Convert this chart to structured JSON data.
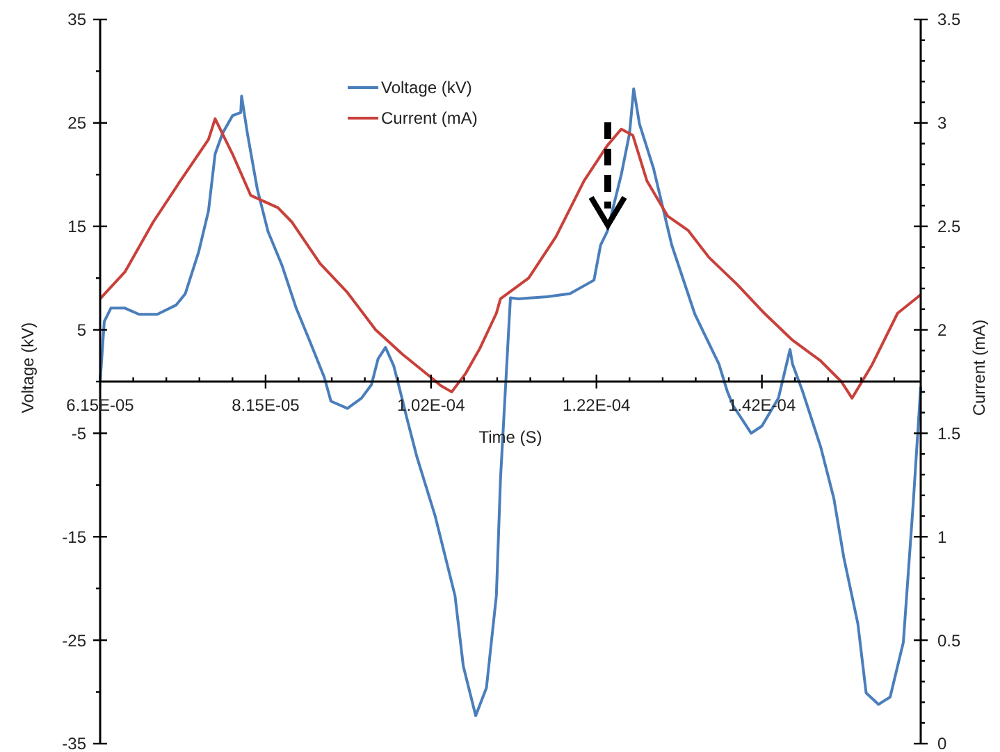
{
  "chart_data": {
    "type": "line",
    "xlabel": "Time  (S)",
    "ylabel": "Voltage  (kV)",
    "y2label": "Current  (mA)",
    "xlim": [
      6.15e-05,
      0.0001607
    ],
    "ylim": [
      -35,
      35
    ],
    "y2lim": [
      0,
      3.5
    ],
    "xticks": [
      {
        "value": 6.15e-05,
        "label": "6.15E-05"
      },
      {
        "value": 6.55e-05,
        "label": null
      },
      {
        "value": 6.95e-05,
        "label": null
      },
      {
        "value": 7.35e-05,
        "label": null
      },
      {
        "value": 7.75e-05,
        "label": null
      },
      {
        "value": 8.15e-05,
        "label": "8.15E-05"
      },
      {
        "value": 8.55e-05,
        "label": null
      },
      {
        "value": 8.95e-05,
        "label": null
      },
      {
        "value": 9.35e-05,
        "label": null
      },
      {
        "value": 9.75e-05,
        "label": null
      },
      {
        "value": 0.0001015,
        "label": "1.02E-04"
      },
      {
        "value": 0.0001055,
        "label": null
      },
      {
        "value": 0.0001095,
        "label": null
      },
      {
        "value": 0.0001135,
        "label": null
      },
      {
        "value": 0.0001175,
        "label": null
      },
      {
        "value": 0.0001215,
        "label": "1.22E-04"
      },
      {
        "value": 0.0001255,
        "label": null
      },
      {
        "value": 0.0001295,
        "label": null
      },
      {
        "value": 0.0001335,
        "label": null
      },
      {
        "value": 0.0001375,
        "label": null
      },
      {
        "value": 0.0001415,
        "label": "1.42E-04"
      },
      {
        "value": 0.0001455,
        "label": null
      },
      {
        "value": 0.0001495,
        "label": null
      },
      {
        "value": 0.0001535,
        "label": null
      },
      {
        "value": 0.0001575,
        "label": null
      }
    ],
    "yticks": [
      -35,
      {
        "value": -30,
        "label": null
      },
      -25,
      {
        "value": -20,
        "label": null
      },
      -15,
      {
        "value": -10,
        "label": null
      },
      -5,
      {
        "value": 0,
        "label": null
      },
      5,
      {
        "value": 10,
        "label": null
      },
      15,
      {
        "value": 20,
        "label": null
      },
      25,
      {
        "value": 30,
        "label": null
      },
      35
    ],
    "y2ticks": [
      0,
      {
        "value": 0.1,
        "label": null
      },
      {
        "value": 0.2,
        "label": null
      },
      {
        "value": 0.3,
        "label": null
      },
      {
        "value": 0.4,
        "label": null
      },
      0.5,
      {
        "value": 0.6,
        "label": null
      },
      {
        "value": 0.7,
        "label": null
      },
      {
        "value": 0.8,
        "label": null
      },
      {
        "value": 0.9,
        "label": null
      },
      1,
      {
        "value": 1.1,
        "label": null
      },
      {
        "value": 1.2,
        "label": null
      },
      {
        "value": 1.3,
        "label": null
      },
      {
        "value": 1.4,
        "label": null
      },
      1.5,
      {
        "value": 1.6,
        "label": null
      },
      {
        "value": 1.7,
        "label": null
      },
      {
        "value": 1.8,
        "label": null
      },
      {
        "value": 1.9,
        "label": null
      },
      2,
      {
        "value": 2.1,
        "label": null
      },
      {
        "value": 2.2,
        "label": null
      },
      {
        "value": 2.3,
        "label": null
      },
      {
        "value": 2.4,
        "label": null
      },
      2.5,
      {
        "value": 2.6,
        "label": null
      },
      {
        "value": 2.7,
        "label": null
      },
      {
        "value": 2.8,
        "label": null
      },
      {
        "value": 2.9,
        "label": null
      },
      3,
      {
        "value": 3.1,
        "label": null
      },
      {
        "value": 3.2,
        "label": null
      },
      {
        "value": 3.3,
        "label": null
      },
      {
        "value": 3.4,
        "label": null
      },
      3.5
    ],
    "grid": false,
    "legend": "top",
    "marker": "none",
    "line_style": "solid",
    "series": [
      {
        "name": "Voltage (kV)",
        "color": "#4a7ebb",
        "x": [
          6.15e-05,
          6.2e-05,
          6.28e-05,
          6.45e-05,
          6.62e-05,
          6.84e-05,
          7.07e-05,
          7.18e-05,
          7.34e-05,
          7.46e-05,
          7.54e-05,
          7.63e-05,
          7.75e-05,
          7.85e-05,
          7.86e-05,
          7.93e-05,
          8.05e-05,
          8.18e-05,
          8.35e-05,
          8.52e-05,
          8.69e-05,
          8.86e-05,
          8.94e-05,
          9.14e-05,
          9.31e-05,
          9.43e-05,
          9.51e-05,
          9.6e-05,
          9.7e-05,
          9.78e-05,
          9.86e-05,
          9.98e-05,
          0.000102,
          0.0001044,
          0.0001054,
          0.0001069,
          0.0001082,
          0.0001094,
          0.0001099,
          0.0001111,
          0.0001121,
          0.0001155,
          0.0001183,
          0.0001212,
          0.000122,
          0.0001228,
          0.0001245,
          0.0001255,
          0.000126,
          0.0001267,
          0.0001284,
          0.0001306,
          0.0001334,
          0.0001363,
          0.0001373,
          0.000138,
          0.0001402,
          0.0001415,
          0.0001435,
          0.0001449,
          0.0001452,
          0.0001464,
          0.0001486,
          0.0001502,
          0.0001514,
          0.0001531,
          0.0001541,
          0.0001556,
          0.000157,
          0.0001586,
          0.0001598,
          0.0001607
        ],
        "values": [
          0,
          5.8,
          7.1,
          7.1,
          6.5,
          6.5,
          7.4,
          8.5,
          12.5,
          16.5,
          22,
          24,
          25.7,
          26,
          27.6,
          24,
          18.6,
          14.5,
          11.2,
          7.1,
          3.8,
          0.4,
          -1.9,
          -2.6,
          -1.6,
          -0.3,
          2.2,
          3.3,
          1.5,
          -1,
          -3.6,
          -7.3,
          -13,
          -20.7,
          -27.5,
          -32.3,
          -29.6,
          -20.7,
          -9.4,
          8.1,
          8,
          8.2,
          8.5,
          9.8,
          13.2,
          14.5,
          20,
          24,
          28.3,
          24.9,
          20.6,
          13.2,
          6.5,
          1.7,
          -0.9,
          -2.3,
          -5,
          -4.3,
          -1.6,
          3.1,
          1.7,
          -0.9,
          -6.3,
          -11.3,
          -17,
          -23.4,
          -30.1,
          -31.2,
          -30.5,
          -25.2,
          -11.7,
          -0.5
        ]
      },
      {
        "name": "Current (mA)",
        "color": "#c9403a",
        "axis": "y2",
        "x": [
          6.15e-05,
          6.45e-05,
          6.79e-05,
          7.12e-05,
          7.46e-05,
          7.54e-05,
          7.75e-05,
          7.97e-05,
          8.3e-05,
          8.47e-05,
          8.81e-05,
          9.14e-05,
          9.48e-05,
          9.81e-05,
          0.0001015,
          0.0001027,
          0.000104,
          0.0001057,
          0.0001074,
          0.0001094,
          0.0001099,
          0.0001133,
          0.0001166,
          0.00012,
          0.0001228,
          0.0001245,
          0.0001259,
          0.0001276,
          0.0001301,
          0.0001326,
          0.0001351,
          0.0001385,
          0.0001418,
          0.0001452,
          0.0001486,
          0.0001511,
          0.0001524,
          0.0001536,
          0.0001548,
          0.0001579,
          0.0001607
        ],
        "values": [
          2.15,
          2.28,
          2.52,
          2.72,
          2.92,
          3.02,
          2.85,
          2.65,
          2.59,
          2.52,
          2.32,
          2.18,
          2,
          1.88,
          1.77,
          1.73,
          1.7,
          1.79,
          1.91,
          2.08,
          2.15,
          2.25,
          2.45,
          2.72,
          2.89,
          2.97,
          2.94,
          2.72,
          2.55,
          2.48,
          2.35,
          2.22,
          2.08,
          1.95,
          1.85,
          1.75,
          1.67,
          1.75,
          1.83,
          2.08,
          2.17
        ]
      }
    ]
  }
}
